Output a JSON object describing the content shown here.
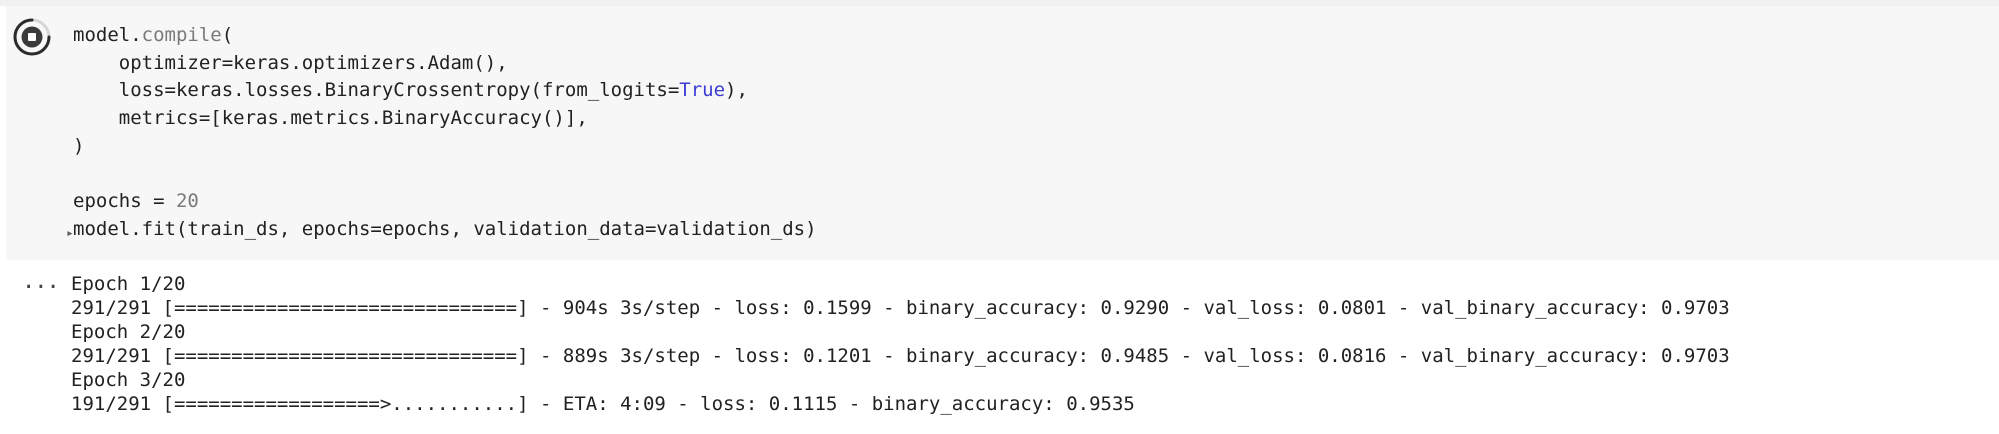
{
  "code_cell": {
    "lines": [
      "model.compile(",
      "    optimizer=keras.optimizers.Adam(),",
      "    loss=keras.losses.BinaryCrossentropy(from_logits=True),",
      "    metrics=[keras.metrics.BinaryAccuracy()],",
      ")",
      "",
      "epochs = 20",
      "model.fit(train_ds, epochs=epochs, validation_data=validation_ds)"
    ],
    "segments": {
      "l1_a": "model.",
      "l1_b": "compile",
      "l1_c": "(",
      "l2": "    optimizer=keras.optimizers.Adam(),",
      "l3_a": "    loss=keras.losses.BinaryCrossentropy(from_logits=",
      "l3_b": "True",
      "l3_c": "),",
      "l4": "    metrics=[keras.metrics.BinaryAccuracy()],",
      "l5": ")",
      "l7_a": "epochs = ",
      "l7_b": "20",
      "l8": "model.fit(train_ds, epochs=epochs, validation_data=validation_ds)"
    },
    "run_state": "running"
  },
  "output": {
    "menu_icon": "ellipsis-icon",
    "menu_label": "...",
    "lines": [
      "Epoch 1/20",
      "291/291 [==============================] - 904s 3s/step - loss: 0.1599 - binary_accuracy: 0.9290 - val_loss: 0.0801 - val_binary_accuracy: 0.9703",
      "Epoch 2/20",
      "291/291 [==============================] - 889s 3s/step - loss: 0.1201 - binary_accuracy: 0.9485 - val_loss: 0.0816 - val_binary_accuracy: 0.9703",
      "Epoch 3/20",
      "191/291 [==================>...........] - ETA: 4:09 - loss: 0.1115 - binary_accuracy: 0.9535"
    ]
  },
  "colors": {
    "cell_background": "#f7f7f7",
    "keyword_true": "#3d3dd4",
    "function_grey": "#7a7a7a",
    "text": "#212121"
  }
}
